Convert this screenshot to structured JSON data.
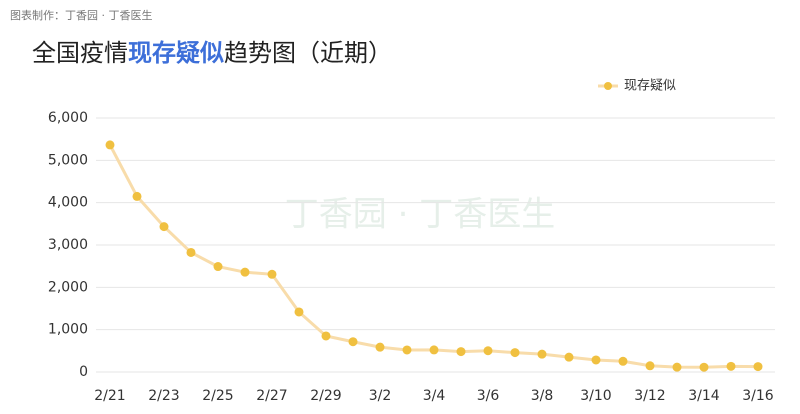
{
  "source": "图表制作：丁香园 · 丁香医生",
  "chart_data": {
    "type": "line",
    "title": {
      "before": "全国疫情",
      "highlight": "现存疑似",
      "after": "趋势图（近期）"
    },
    "watermark": "丁香园 · 丁香医生",
    "categories": [
      "2/21",
      null,
      "2/23",
      null,
      "2/25",
      null,
      "2/27",
      null,
      "2/29",
      null,
      "3/2",
      null,
      "3/4",
      null,
      "3/6",
      null,
      "3/8",
      null,
      "3/10",
      null,
      "3/12",
      null,
      "3/14",
      null,
      "3/16"
    ],
    "series": [
      {
        "name": "现存疑似",
        "color": "#f0c040",
        "line_color": "#f8dcaa",
        "values": [
          5365,
          4148,
          3434,
          2824,
          2491,
          2358,
          2308,
          1418,
          851,
          715,
          587,
          520,
          522,
          482,
          502,
          458,
          421,
          351,
          284,
          253,
          147,
          115,
          113,
          134,
          128
        ]
      }
    ],
    "ylim": [
      0,
      6000
    ],
    "yticks": [
      0,
      {
        "value": 1000,
        "label": "1,000"
      },
      {
        "value": 2000,
        "label": "2,000"
      },
      {
        "value": 3000,
        "label": "3,000"
      },
      {
        "value": 4000,
        "label": "4,000"
      },
      {
        "value": 5000,
        "label": "5,000"
      },
      {
        "value": 6000,
        "label": "6,000"
      }
    ],
    "grid": true,
    "legend": "top-right"
  }
}
